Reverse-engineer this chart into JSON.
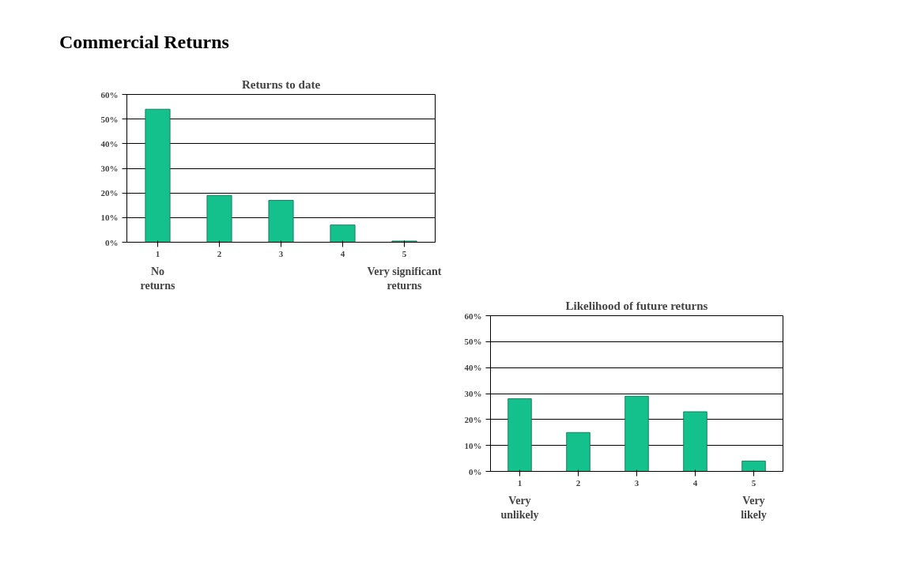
{
  "chart_data": [
    {
      "type": "bar",
      "title": "Returns to date",
      "categories": [
        "1",
        "2",
        "3",
        "4",
        "5"
      ],
      "values": [
        54,
        19,
        17,
        7,
        0.5
      ],
      "color": "#14c08c",
      "ylim": [
        0,
        60
      ],
      "yticks": [
        {
          "value": 0,
          "label": "0%"
        },
        {
          "value": 10,
          "label": "10%"
        },
        {
          "value": 20,
          "label": "20%"
        },
        {
          "value": 30,
          "label": "30%"
        },
        {
          "value": 40,
          "label": "40%"
        },
        {
          "value": 50,
          "label": "50%"
        },
        {
          "value": 60,
          "label": "60%"
        }
      ],
      "grid": "y",
      "annotations": [
        "Commercial Returns",
        "No returns",
        "Very significant returns"
      ]
    },
    {
      "type": "bar",
      "title": "Likelihood of future returns",
      "categories": [
        "1",
        "2",
        "3",
        "4",
        "5"
      ],
      "values": [
        28,
        15,
        29,
        23,
        4
      ],
      "color": "#14c08c",
      "ylim": [
        0,
        60
      ],
      "yticks": [
        {
          "value": 0,
          "label": "0%"
        },
        {
          "value": 10,
          "label": "10%"
        },
        {
          "value": 20,
          "label": "20%"
        },
        {
          "value": 30,
          "label": "30%"
        },
        {
          "value": 40,
          "label": "40%"
        },
        {
          "value": 50,
          "label": "50%"
        },
        {
          "value": 60,
          "label": "60%"
        }
      ],
      "grid": "y",
      "annotations": [
        "Very unlikely",
        "Very likely"
      ]
    }
  ]
}
